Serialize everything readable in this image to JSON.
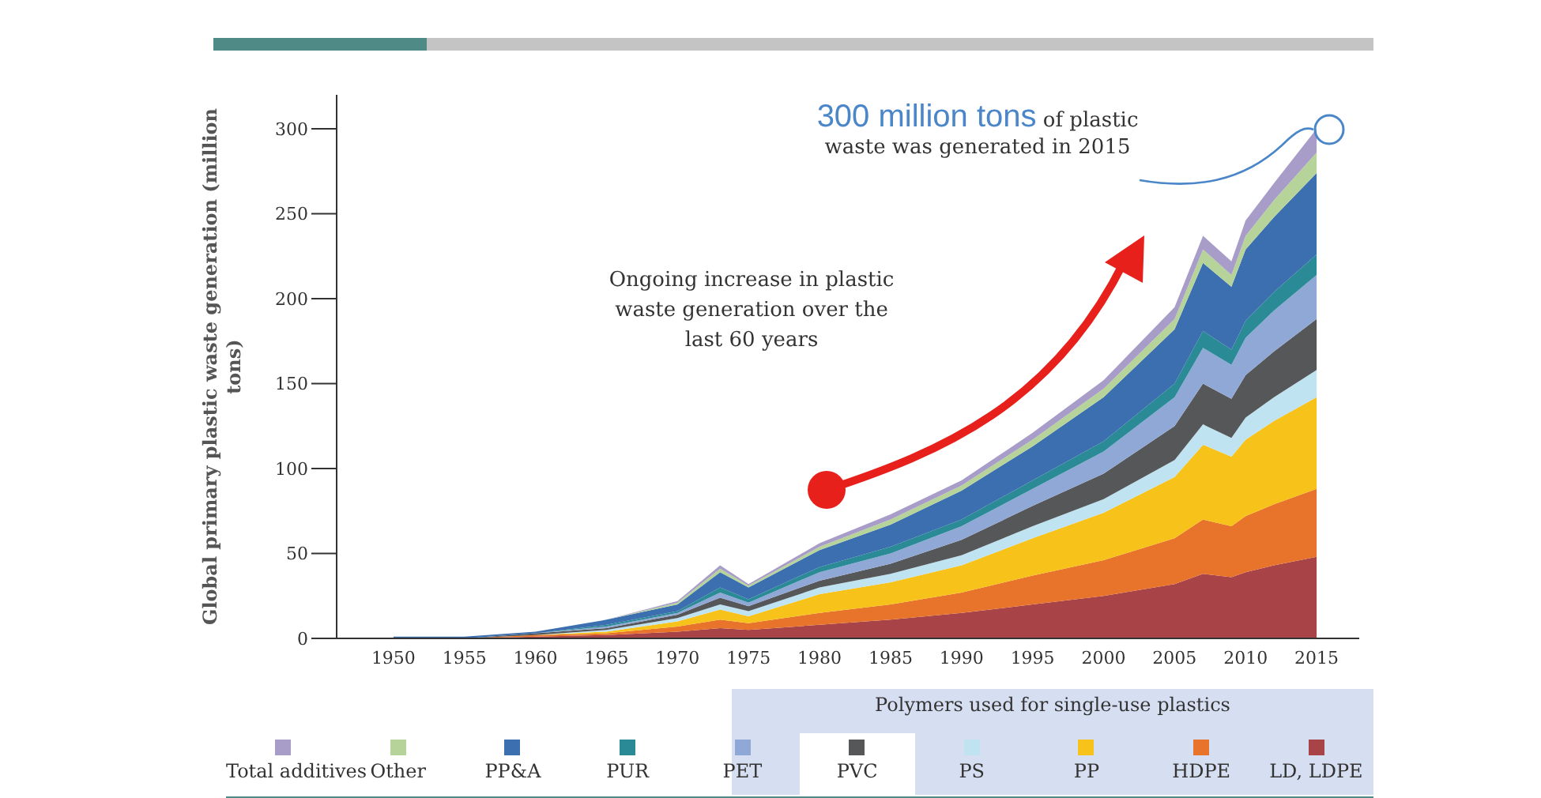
{
  "chart_data": {
    "type": "area",
    "stacked": true,
    "ylabel": "Global primary plastic waste generation (million tons)",
    "legend_title": "Polymers used for single-use plastics",
    "x": [
      1950,
      1955,
      1960,
      1965,
      1970,
      1973,
      1975,
      1980,
      1985,
      1990,
      1995,
      2000,
      2005,
      2007,
      2009,
      2010,
      2012,
      2015
    ],
    "xlim": [
      1946,
      2018
    ],
    "xticks": [
      1950,
      1955,
      1960,
      1965,
      1970,
      1975,
      1980,
      1985,
      1990,
      1995,
      2000,
      2005,
      2010,
      2015
    ],
    "ylim": [
      0,
      320
    ],
    "yticks": [
      0,
      50,
      100,
      150,
      200,
      250,
      300
    ],
    "legend": "bottom",
    "annotations": [
      {
        "text": "300 million tons of plastic waste was generated in 2015",
        "x": 2015,
        "y": 300
      },
      "Ongoing increase in plastic waste generation over the last 60 years"
    ],
    "series": [
      {
        "name": "LD, LDPE",
        "color": "#a84448",
        "values": [
          0,
          0,
          1,
          2,
          4,
          6,
          5,
          8,
          11,
          15,
          20,
          25,
          32,
          38,
          36,
          39,
          43,
          48
        ]
      },
      {
        "name": "HDPE",
        "color": "#e8732a",
        "values": [
          0,
          0,
          1,
          1,
          3,
          5,
          4,
          7,
          9,
          12,
          17,
          21,
          27,
          32,
          30,
          33,
          36,
          40
        ]
      },
      {
        "name": "PP",
        "color": "#f7c21a",
        "values": [
          0,
          0,
          0,
          1,
          3,
          6,
          4,
          11,
          13,
          16,
          22,
          28,
          36,
          44,
          41,
          45,
          49,
          54
        ]
      },
      {
        "name": "PS",
        "color": "#bfe3f0",
        "values": [
          0,
          0,
          0,
          1,
          2,
          3,
          3,
          4,
          5,
          6,
          7,
          8,
          10,
          12,
          11,
          13,
          14,
          16
        ]
      },
      {
        "name": "PVC",
        "color": "#555759",
        "values": [
          0,
          0,
          1,
          1,
          2,
          4,
          3,
          4,
          6,
          9,
          12,
          15,
          20,
          24,
          23,
          25,
          27,
          30
        ]
      },
      {
        "name": "PET",
        "color": "#90a8d6",
        "values": [
          0,
          0,
          0,
          1,
          1,
          3,
          2,
          5,
          6,
          8,
          10,
          13,
          17,
          21,
          20,
          22,
          24,
          26
        ]
      },
      {
        "name": "PUR",
        "color": "#2a8a96",
        "values": [
          0,
          0,
          0,
          1,
          1,
          3,
          2,
          3,
          4,
          4,
          5,
          6,
          8,
          10,
          9,
          10,
          11,
          12
        ]
      },
      {
        "name": "PP&A",
        "color": "#3c6fb0",
        "values": [
          1,
          1,
          1,
          3,
          4,
          9,
          7,
          10,
          13,
          17,
          20,
          26,
          32,
          40,
          37,
          42,
          44,
          48
        ]
      },
      {
        "name": "Other",
        "color": "#b6d49a",
        "values": [
          0,
          0,
          0,
          0,
          1,
          2,
          1,
          2,
          3,
          3,
          4,
          5,
          6,
          8,
          7,
          8,
          10,
          12
        ]
      },
      {
        "name": "Total additives",
        "color": "#a89cc8",
        "values": [
          0,
          0,
          0,
          0,
          1,
          2,
          1,
          2,
          3,
          3,
          4,
          5,
          7,
          8,
          8,
          9,
          10,
          14
        ]
      }
    ]
  }
}
